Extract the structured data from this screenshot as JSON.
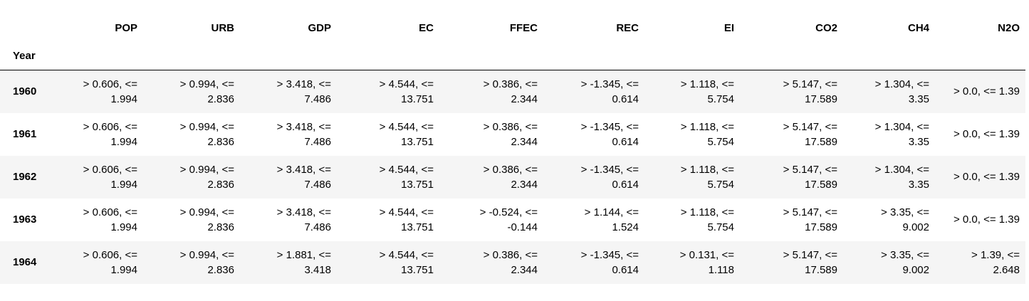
{
  "table": {
    "index_name": "Year",
    "columns": [
      "POP",
      "URB",
      "GDP",
      "EC",
      "FFEC",
      "REC",
      "EI",
      "CO2",
      "CH4",
      "N2O"
    ],
    "rows": [
      {
        "label": "1960",
        "cells": [
          "> 0.606, <= 1.994",
          "> 0.994, <= 2.836",
          "> 3.418, <= 7.486",
          "> 4.544, <= 13.751",
          "> 0.386, <= 2.344",
          "> -1.345, <= 0.614",
          "> 1.118, <= 5.754",
          "> 5.147, <= 17.589",
          "> 1.304, <= 3.35",
          "> 0.0, <= 1.39"
        ]
      },
      {
        "label": "1961",
        "cells": [
          "> 0.606, <= 1.994",
          "> 0.994, <= 2.836",
          "> 3.418, <= 7.486",
          "> 4.544, <= 13.751",
          "> 0.386, <= 2.344",
          "> -1.345, <= 0.614",
          "> 1.118, <= 5.754",
          "> 5.147, <= 17.589",
          "> 1.304, <= 3.35",
          "> 0.0, <= 1.39"
        ]
      },
      {
        "label": "1962",
        "cells": [
          "> 0.606, <= 1.994",
          "> 0.994, <= 2.836",
          "> 3.418, <= 7.486",
          "> 4.544, <= 13.751",
          "> 0.386, <= 2.344",
          "> -1.345, <= 0.614",
          "> 1.118, <= 5.754",
          "> 5.147, <= 17.589",
          "> 1.304, <= 3.35",
          "> 0.0, <= 1.39"
        ]
      },
      {
        "label": "1963",
        "cells": [
          "> 0.606, <= 1.994",
          "> 0.994, <= 2.836",
          "> 3.418, <= 7.486",
          "> 4.544, <= 13.751",
          "> -0.524, <= -0.144",
          "> 1.144, <= 1.524",
          "> 1.118, <= 5.754",
          "> 5.147, <= 17.589",
          "> 3.35, <= 9.002",
          "> 0.0, <= 1.39"
        ]
      },
      {
        "label": "1964",
        "cells": [
          "> 0.606, <= 1.994",
          "> 0.994, <= 2.836",
          "> 1.881, <= 3.418",
          "> 4.544, <= 13.751",
          "> 0.386, <= 2.344",
          "> -1.345, <= 0.614",
          "> 0.131, <= 1.118",
          "> 5.147, <= 17.589",
          "> 3.35, <= 9.002",
          "> 1.39, <= 2.648"
        ]
      }
    ]
  }
}
